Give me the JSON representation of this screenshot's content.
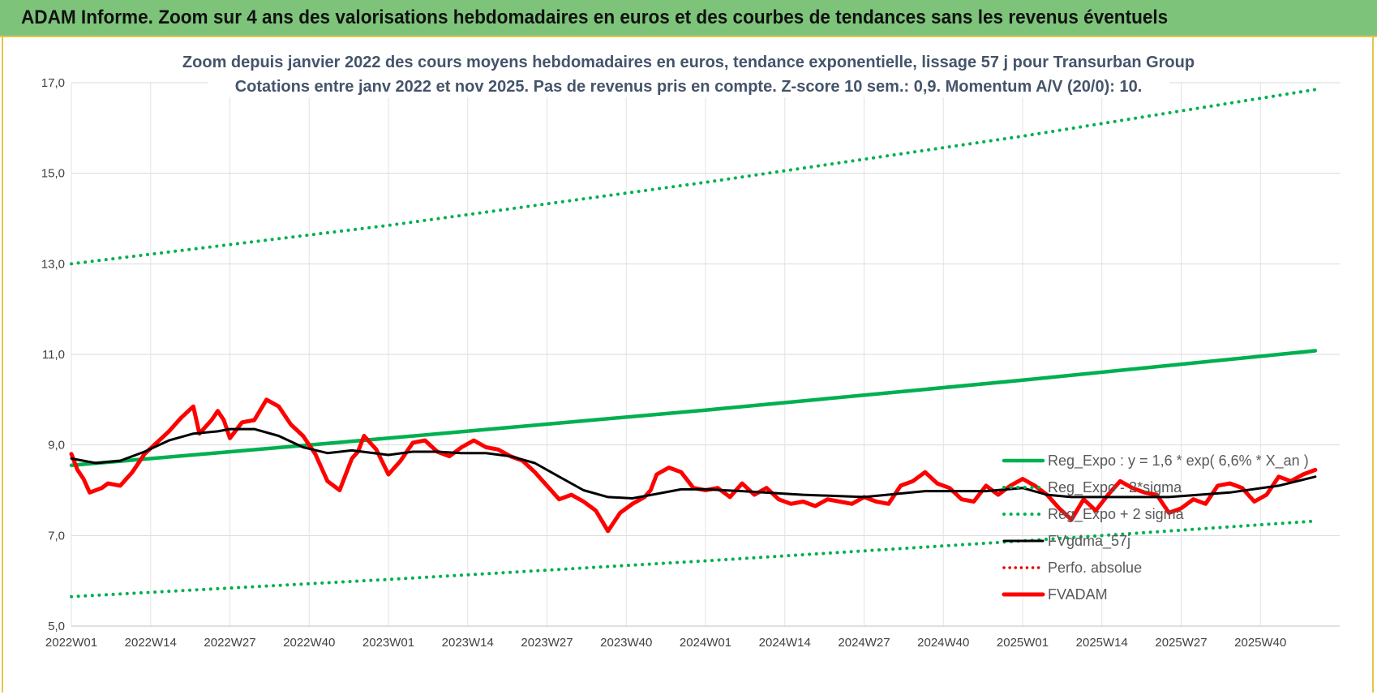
{
  "banner": {
    "title": "ADAM Informe. Zoom sur 4 ans des valorisations hebdomadaires en euros et des courbes de tendances sans les revenus éventuels"
  },
  "chart_data": {
    "type": "line",
    "title": "Zoom depuis janvier 2022 des cours moyens hebdomadaires en euros, tendance exponentielle, lissage 57 j pour Transurban Group",
    "subtitle": "Cotations entre janv 2022 et nov 2025. Pas de revenus pris en compte. Z-score 10 sem.: 0,9. Momentum A/V (20/0): 10.",
    "xlabel": "",
    "ylabel": "",
    "ylim": [
      5,
      17
    ],
    "yticks": [
      "5,0",
      "7,0",
      "9,0",
      "11,0",
      "13,0",
      "15,0",
      "17,0"
    ],
    "ytick_values": [
      5,
      7,
      9,
      11,
      13,
      15,
      17
    ],
    "xlim": [
      0,
      208
    ],
    "xticks": [
      "2022W01",
      "2022W14",
      "2022W27",
      "2022W40",
      "2023W01",
      "2023W14",
      "2023W27",
      "2023W40",
      "2024W01",
      "2024W14",
      "2024W27",
      "2024W40",
      "2025W01",
      "2025W14",
      "2025W27",
      "2025W40"
    ],
    "xtick_positions": [
      0,
      13,
      26,
      39,
      52,
      65,
      78,
      91,
      104,
      117,
      130,
      143,
      156,
      169,
      182,
      195
    ],
    "grid": true,
    "legend_position": "bottom-right",
    "colors": {
      "green": "#00b050",
      "black": "#000000",
      "red": "#ff0000",
      "dotted_red": "#e00000"
    },
    "series": [
      {
        "name": "Reg_Expo : y = 1,6 * exp( 6,6% *  X_an )",
        "style": "solid-green",
        "x": [
          0,
          52,
          104,
          156,
          204
        ],
        "y": [
          8.55,
          9.15,
          9.77,
          10.43,
          11.08
        ]
      },
      {
        "name": "Reg_Expo - 2*sigma",
        "style": "dotted-green",
        "x": [
          0,
          52,
          104,
          156,
          204
        ],
        "y": [
          5.65,
          6.03,
          6.44,
          6.88,
          7.32
        ]
      },
      {
        "name": "Reg_Expo + 2 sigma",
        "style": "dotted-green",
        "x": [
          0,
          52,
          104,
          156,
          204
        ],
        "y": [
          13.0,
          13.85,
          14.8,
          15.82,
          16.85
        ]
      },
      {
        "name": "FVgdma_57j",
        "style": "solid-black",
        "x": [
          0,
          4,
          8,
          12,
          16,
          20,
          24,
          26,
          30,
          34,
          38,
          42,
          46,
          52,
          56,
          60,
          64,
          68,
          72,
          76,
          80,
          84,
          88,
          92,
          96,
          100,
          104,
          110,
          120,
          130,
          140,
          150,
          156,
          160,
          164,
          170,
          180,
          190,
          198,
          204
        ],
        "y": [
          8.7,
          8.6,
          8.65,
          8.85,
          9.1,
          9.25,
          9.3,
          9.35,
          9.35,
          9.2,
          8.95,
          8.82,
          8.88,
          8.78,
          8.85,
          8.85,
          8.82,
          8.82,
          8.75,
          8.6,
          8.3,
          8.0,
          7.85,
          7.82,
          7.92,
          8.02,
          8.02,
          7.98,
          7.9,
          7.85,
          7.98,
          7.98,
          8.05,
          7.9,
          7.85,
          7.85,
          7.85,
          7.95,
          8.1,
          8.3
        ]
      },
      {
        "name": "Perfo. absolue",
        "style": "dotted-red",
        "x": [],
        "y": []
      },
      {
        "name": "FVADAM",
        "style": "thick-red",
        "x": [
          0,
          1,
          2,
          3,
          5,
          6,
          8,
          10,
          12,
          14,
          16,
          18,
          20,
          21,
          22,
          23,
          24,
          25,
          26,
          28,
          30,
          32,
          34,
          36,
          38,
          40,
          41,
          42,
          44,
          46,
          47,
          48,
          50,
          52,
          54,
          56,
          58,
          60,
          62,
          64,
          66,
          68,
          70,
          72,
          74,
          76,
          78,
          80,
          82,
          84,
          85,
          86,
          88,
          90,
          92,
          94,
          95,
          96,
          98,
          100,
          102,
          104,
          106,
          108,
          110,
          112,
          114,
          116,
          118,
          120,
          122,
          124,
          126,
          128,
          130,
          132,
          134,
          136,
          138,
          140,
          142,
          144,
          146,
          148,
          150,
          152,
          154,
          156,
          158,
          160,
          162,
          164,
          166,
          168,
          170,
          172,
          174,
          176,
          178,
          180,
          182,
          184,
          186,
          188,
          190,
          192,
          194,
          196,
          198,
          200,
          202,
          204
        ],
        "y": [
          8.8,
          8.45,
          8.25,
          7.95,
          8.05,
          8.15,
          8.1,
          8.4,
          8.8,
          9.05,
          9.3,
          9.6,
          9.85,
          9.25,
          9.4,
          9.55,
          9.75,
          9.55,
          9.15,
          9.5,
          9.55,
          10.0,
          9.85,
          9.45,
          9.2,
          8.8,
          8.5,
          8.2,
          8.0,
          8.7,
          8.85,
          9.2,
          8.9,
          8.35,
          8.65,
          9.05,
          9.1,
          8.85,
          8.75,
          8.95,
          9.1,
          8.95,
          8.9,
          8.75,
          8.65,
          8.4,
          8.1,
          7.8,
          7.9,
          7.75,
          7.65,
          7.55,
          7.1,
          7.5,
          7.7,
          7.85,
          8.0,
          8.35,
          8.5,
          8.4,
          8.05,
          8.0,
          8.05,
          7.85,
          8.15,
          7.9,
          8.05,
          7.8,
          7.7,
          7.75,
          7.65,
          7.8,
          7.75,
          7.7,
          7.85,
          7.75,
          7.7,
          8.1,
          8.2,
          8.4,
          8.15,
          8.05,
          7.8,
          7.75,
          8.1,
          7.9,
          8.1,
          8.25,
          8.1,
          7.9,
          7.6,
          7.35,
          7.8,
          7.55,
          7.9,
          8.2,
          8.05,
          7.95,
          7.9,
          7.5,
          7.6,
          7.8,
          7.7,
          8.1,
          8.15,
          8.05,
          7.75,
          7.9,
          8.3,
          8.2,
          8.35,
          8.45
        ]
      }
    ]
  }
}
